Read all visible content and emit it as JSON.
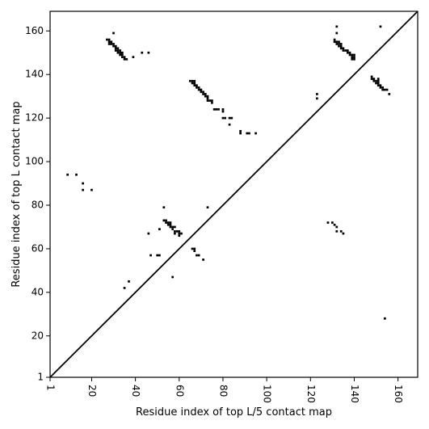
{
  "chart_data": {
    "type": "scatter",
    "xlabel": "Residue index of top L/5 contact map",
    "ylabel": "Residue index of top L contact map",
    "xlim": [
      1,
      169
    ],
    "ylim": [
      1,
      169
    ],
    "x_ticks": [
      1,
      20,
      40,
      60,
      80,
      100,
      120,
      140,
      160
    ],
    "y_ticks": [
      1,
      20,
      40,
      60,
      80,
      100,
      120,
      140,
      160
    ],
    "x_tick_labels": [
      "1",
      "20",
      "40",
      "60",
      "80",
      "100",
      "120",
      "140",
      "160"
    ],
    "y_tick_labels": [
      "1",
      "20",
      "40",
      "60",
      "80",
      "100",
      "120",
      "140",
      "160"
    ],
    "x_tick_rotation": "90",
    "diagonal": true,
    "marker": "square",
    "color": "#000000",
    "grid": false,
    "series": [
      {
        "points": [
          [
            27,
            156
          ],
          [
            28,
            156
          ],
          [
            28,
            155
          ],
          [
            28,
            154
          ],
          [
            29,
            155
          ],
          [
            29,
            154
          ],
          [
            30,
            154
          ],
          [
            30,
            153
          ],
          [
            31,
            153
          ],
          [
            31,
            152
          ],
          [
            31,
            151
          ],
          [
            32,
            152
          ],
          [
            32,
            151
          ],
          [
            32,
            150
          ],
          [
            33,
            151
          ],
          [
            33,
            150
          ],
          [
            33,
            149
          ],
          [
            34,
            150
          ],
          [
            34,
            149
          ],
          [
            34,
            148
          ],
          [
            35,
            148
          ],
          [
            35,
            147
          ],
          [
            36,
            147
          ],
          [
            30,
            159
          ],
          [
            39,
            148
          ],
          [
            43,
            150
          ],
          [
            46,
            150
          ],
          [
            65,
            137
          ],
          [
            66,
            137
          ],
          [
            66,
            136
          ],
          [
            67,
            137
          ],
          [
            67,
            136
          ],
          [
            67,
            135
          ],
          [
            68,
            135
          ],
          [
            68,
            134
          ],
          [
            69,
            134
          ],
          [
            69,
            133
          ],
          [
            70,
            133
          ],
          [
            70,
            132
          ],
          [
            71,
            132
          ],
          [
            71,
            131
          ],
          [
            72,
            131
          ],
          [
            72,
            130
          ],
          [
            73,
            130
          ],
          [
            73,
            129
          ],
          [
            73,
            128
          ],
          [
            74,
            128
          ],
          [
            75,
            128
          ],
          [
            75,
            127
          ],
          [
            76,
            124
          ],
          [
            77,
            124
          ],
          [
            78,
            124
          ],
          [
            80,
            124
          ],
          [
            80,
            123
          ],
          [
            80,
            120
          ],
          [
            81,
            120
          ],
          [
            83,
            120
          ],
          [
            84,
            120
          ],
          [
            83,
            117
          ],
          [
            88,
            114
          ],
          [
            88,
            113
          ],
          [
            91,
            113
          ],
          [
            92,
            113
          ],
          [
            95,
            113
          ],
          [
            9,
            94
          ],
          [
            13,
            94
          ],
          [
            16,
            90
          ],
          [
            16,
            87
          ],
          [
            20,
            87
          ],
          [
            53,
            79
          ],
          [
            73,
            79
          ],
          [
            53,
            73
          ],
          [
            54,
            73
          ],
          [
            54,
            72
          ],
          [
            55,
            72
          ],
          [
            55,
            71
          ],
          [
            56,
            72
          ],
          [
            56,
            71
          ],
          [
            56,
            70
          ],
          [
            57,
            70
          ],
          [
            57,
            69
          ],
          [
            58,
            70
          ],
          [
            58,
            68
          ],
          [
            58,
            67
          ],
          [
            59,
            68
          ],
          [
            60,
            68
          ],
          [
            60,
            67
          ],
          [
            60,
            66
          ],
          [
            61,
            67
          ],
          [
            51,
            69
          ],
          [
            46,
            67
          ],
          [
            66,
            60
          ],
          [
            67,
            60
          ],
          [
            67,
            59
          ],
          [
            68,
            57
          ],
          [
            69,
            57
          ],
          [
            71,
            55
          ],
          [
            47,
            57
          ],
          [
            50,
            57
          ],
          [
            51,
            57
          ],
          [
            57,
            47
          ],
          [
            37,
            45
          ],
          [
            35,
            42
          ],
          [
            123,
            131
          ],
          [
            123,
            129
          ],
          [
            132,
            162
          ],
          [
            132,
            159
          ],
          [
            131,
            156
          ],
          [
            131,
            155
          ],
          [
            132,
            155
          ],
          [
            132,
            154
          ],
          [
            133,
            155
          ],
          [
            133,
            154
          ],
          [
            133,
            153
          ],
          [
            134,
            154
          ],
          [
            134,
            153
          ],
          [
            134,
            152
          ],
          [
            135,
            152
          ],
          [
            135,
            151
          ],
          [
            136,
            151
          ],
          [
            137,
            151
          ],
          [
            137,
            150
          ],
          [
            138,
            150
          ],
          [
            138,
            149
          ],
          [
            139,
            149
          ],
          [
            139,
            148
          ],
          [
            139,
            147
          ],
          [
            140,
            149
          ],
          [
            140,
            148
          ],
          [
            140,
            147
          ],
          [
            148,
            139
          ],
          [
            148,
            138
          ],
          [
            149,
            138
          ],
          [
            149,
            137
          ],
          [
            150,
            137
          ],
          [
            150,
            136
          ],
          [
            151,
            138
          ],
          [
            151,
            137
          ],
          [
            151,
            136
          ],
          [
            151,
            135
          ],
          [
            152,
            135
          ],
          [
            152,
            134
          ],
          [
            153,
            134
          ],
          [
            153,
            133
          ],
          [
            154,
            133
          ],
          [
            155,
            133
          ],
          [
            156,
            131
          ],
          [
            152,
            162
          ],
          [
            128,
            72
          ],
          [
            130,
            72
          ],
          [
            131,
            71
          ],
          [
            132,
            70
          ],
          [
            132,
            68
          ],
          [
            134,
            68
          ],
          [
            135,
            67
          ],
          [
            154,
            28
          ]
        ]
      }
    ]
  }
}
